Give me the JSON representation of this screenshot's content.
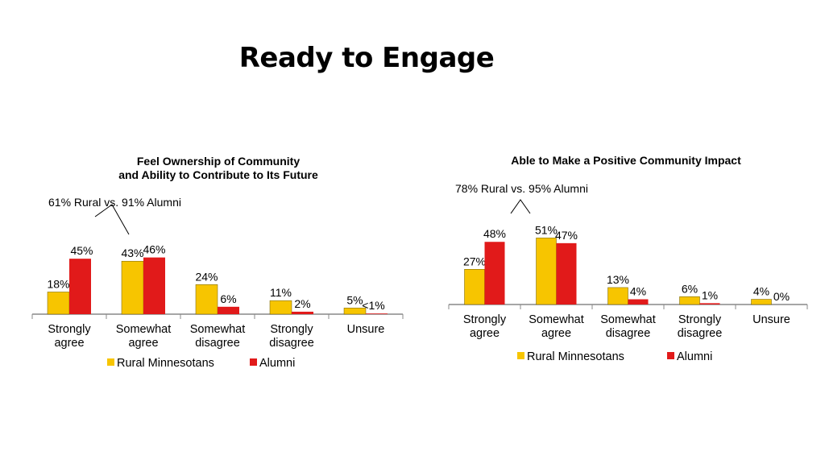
{
  "slide": {
    "title": "Ready to Engage"
  },
  "colors": {
    "rural": "#F7C500",
    "alumni": "#E11A1A",
    "axis": "#888888"
  },
  "chart_data": [
    {
      "type": "bar",
      "title_lines": [
        "Feel Ownership of Community",
        "and Ability to Contribute to Its Future"
      ],
      "annotation": "61% Rural vs. 91% Alumni",
      "categories": [
        [
          "Strongly",
          "agree"
        ],
        [
          "Somewhat",
          "agree"
        ],
        [
          "Somewhat",
          "disagree"
        ],
        [
          "Strongly",
          "disagree"
        ],
        [
          "Unsure"
        ]
      ],
      "series": [
        {
          "name": "Rural Minnesotans",
          "values": [
            18,
            43,
            24,
            11,
            5
          ],
          "labels": [
            "18%",
            "43%",
            "24%",
            "11%",
            "5%"
          ]
        },
        {
          "name": "Alumni",
          "values": [
            45,
            46,
            6,
            2,
            0.5
          ],
          "labels": [
            "45%",
            "46%",
            "6%",
            "2%",
            "<1%"
          ]
        }
      ],
      "ylim": [
        0,
        50
      ],
      "legend": "bottom"
    },
    {
      "type": "bar",
      "title_lines": [
        "Able to Make a Positive Community Impact"
      ],
      "annotation": "78% Rural vs. 95% Alumni",
      "categories": [
        [
          "Strongly",
          "agree"
        ],
        [
          "Somewhat",
          "agree"
        ],
        [
          "Somewhat",
          "disagree"
        ],
        [
          "Strongly",
          "disagree"
        ],
        [
          "Unsure"
        ]
      ],
      "series": [
        {
          "name": "Rural Minnesotans",
          "values": [
            27,
            51,
            13,
            6,
            4
          ],
          "labels": [
            "27%",
            "51%",
            "13%",
            "6%",
            "4%"
          ]
        },
        {
          "name": "Alumni",
          "values": [
            48,
            47,
            4,
            1,
            0
          ],
          "labels": [
            "48%",
            "47%",
            "4%",
            "1%",
            "0%"
          ]
        }
      ],
      "ylim": [
        0,
        55
      ],
      "legend": "bottom"
    }
  ]
}
